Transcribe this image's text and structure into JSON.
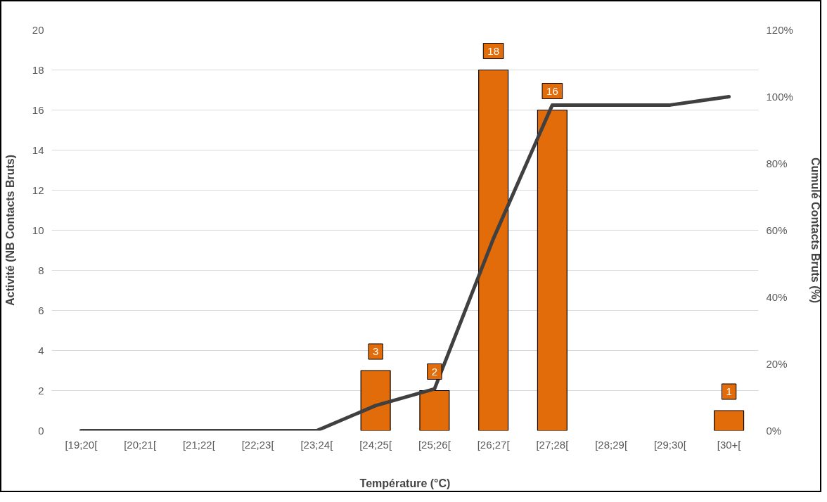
{
  "chart_data": {
    "type": "bar",
    "xlabel": "Température (°C)",
    "ylabel": "Activité (NB Contacts Bruts)",
    "y2label": "Cumulé Contacts Bruts (%)",
    "categories": [
      "[19;20[",
      "[20;21[",
      "[21;22[",
      "[22;23[",
      "[23;24[",
      "[24;25[",
      "[25;26[",
      "[26;27[",
      "[27;28[",
      "[28;29[",
      "[29;30[",
      "[30+["
    ],
    "series": [
      {
        "color": "#e36c0a",
        "values": [
          0,
          0,
          0,
          0,
          0,
          3,
          2,
          18,
          16,
          0,
          0,
          1
        ],
        "value_labels": [
          null,
          null,
          null,
          null,
          null,
          "3",
          "2",
          "18",
          "16",
          null,
          null,
          "1"
        ]
      },
      {
        "type": "line",
        "axis": "y2",
        "color": "#404040",
        "values": [
          0,
          0,
          0,
          0,
          0,
          7.5,
          12.5,
          57.5,
          97.5,
          97.5,
          97.5,
          100
        ]
      }
    ],
    "ylim": [
      0,
      20
    ],
    "yticks": [
      0,
      2,
      4,
      6,
      8,
      10,
      12,
      14,
      16,
      18,
      20
    ],
    "y2lim": [
      0,
      120
    ],
    "y2ticks": [
      {
        "value": 0,
        "label": "0%"
      },
      {
        "value": 20,
        "label": "20%"
      },
      {
        "value": 40,
        "label": "40%"
      },
      {
        "value": 60,
        "label": "60%"
      },
      {
        "value": 80,
        "label": "80%"
      },
      {
        "value": 100,
        "label": "100%"
      },
      {
        "value": 120,
        "label": "120%"
      }
    ],
    "grid": "y"
  }
}
